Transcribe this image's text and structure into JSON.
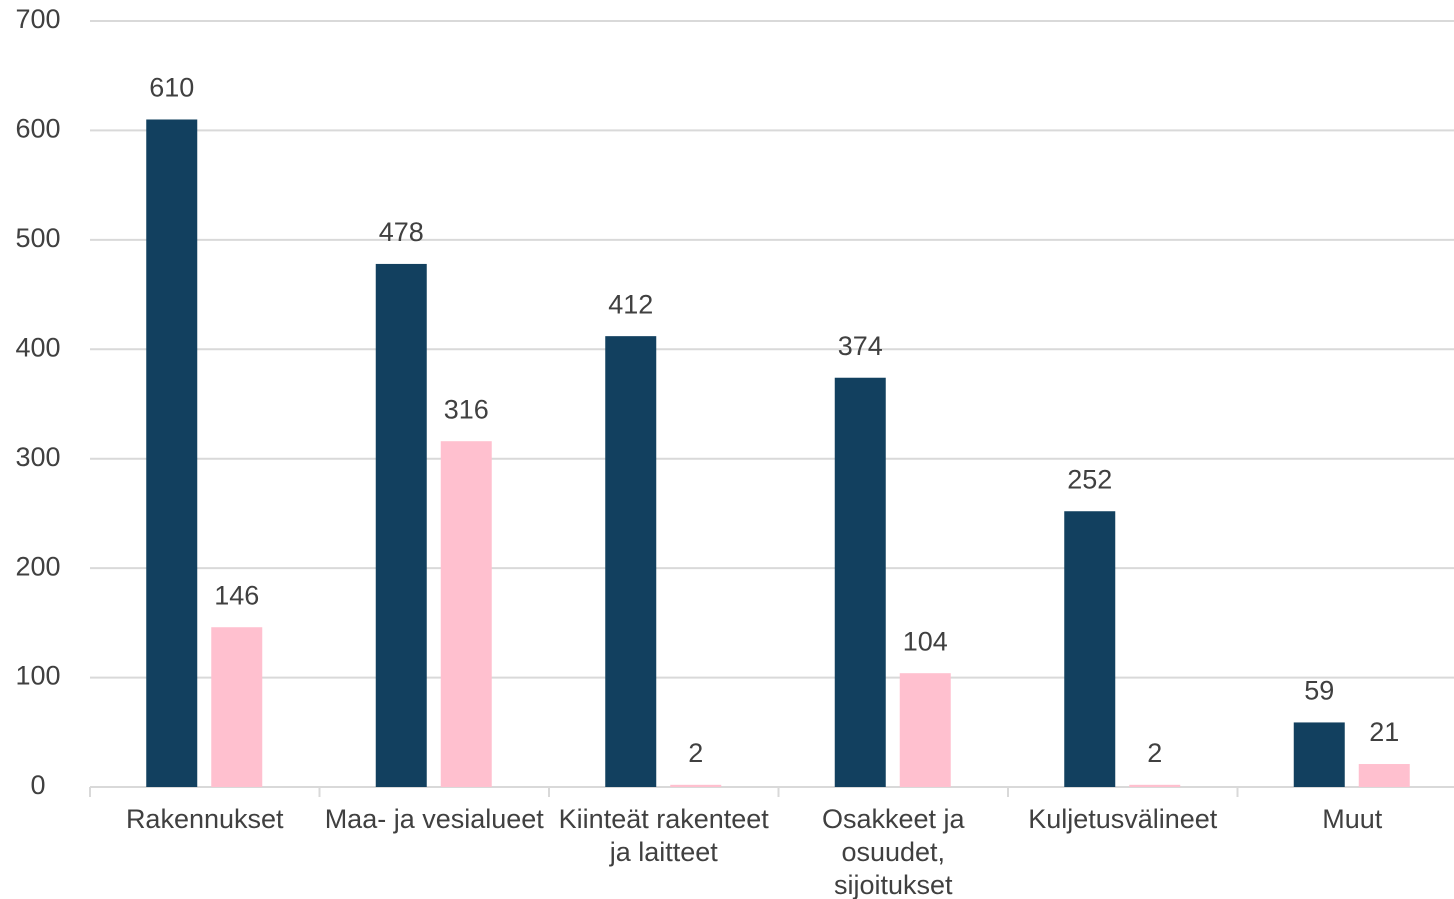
{
  "chart_data": {
    "type": "bar",
    "categories": [
      "Rakennukset",
      "Maa- ja vesialueet",
      "Kiinteät rakenteet ja laitteet",
      "Osakkeet ja osuudet, sijoitukset",
      "Kuljetusvälineet",
      "Muut"
    ],
    "series": [
      {
        "color": "#12405f",
        "values": [
          610,
          478,
          412,
          374,
          252,
          59
        ]
      },
      {
        "color": "#ffc0cf",
        "values": [
          146,
          316,
          2,
          104,
          2,
          21
        ]
      }
    ],
    "ylim": [
      0,
      700
    ],
    "yticks": [
      0,
      100,
      200,
      300,
      400,
      500,
      600,
      700
    ],
    "grid": true
  }
}
